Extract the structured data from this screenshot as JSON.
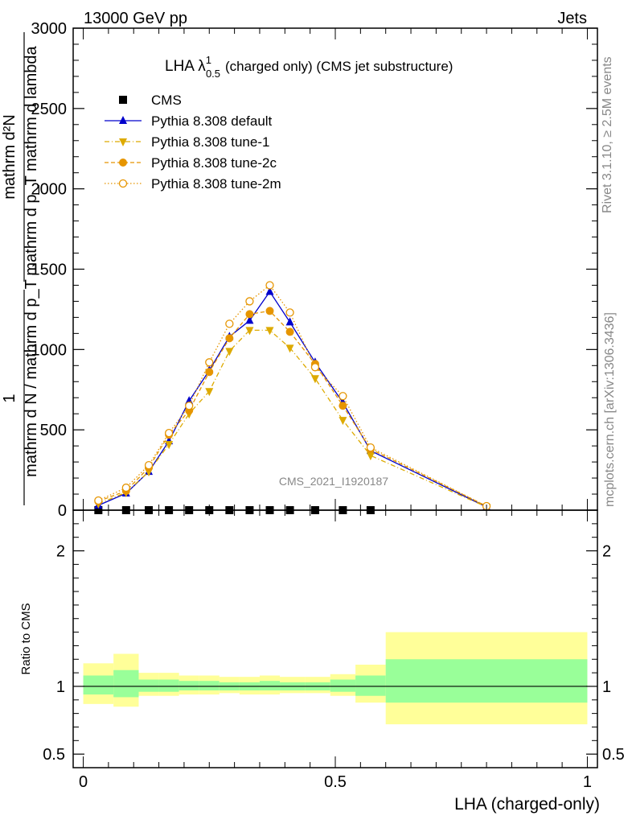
{
  "header": {
    "left": "13000 GeV pp",
    "right": "Jets"
  },
  "side": {
    "rivet": "Rivet 3.1.10, ≥ 2.5M events",
    "mcplots": "mcplots.cern.ch [arXiv:1306.3436]"
  },
  "watermark": "CMS_2021_I1920187",
  "chart_data": [
    {
      "type": "line",
      "title": "LHA λ",
      "title_sup": "1",
      "title_sub": "0.5",
      "title_rest": "(charged only) (CMS jet substructure)",
      "xlabel": "LHA (charged-only)",
      "ylabel_parts": [
        "1",
        "mathrm d N / mathrm d p",
        "mathrm d p_T mathrm d lambda",
        "mathrm d^2N",
        "mathrm d p_T mathrm d lambda"
      ],
      "ylabel_num": "mathrm d²N",
      "ylabel_den": "mathrm d p_T mathrm d lambda",
      "ylabel_pre_num": "1",
      "ylabel_pre_den": "mathrm d N / mathrm d p_T",
      "xlim": [
        -0.02,
        1.02
      ],
      "ylim": [
        0,
        3000
      ],
      "yticks": [
        0,
        500,
        1000,
        1500,
        2000,
        2500,
        3000
      ],
      "ytick_labels": [
        "0",
        "500",
        "1000",
        "1500",
        "2000",
        "2500",
        "3000"
      ],
      "legend_position": "top-left",
      "x": [
        0.03,
        0.085,
        0.13,
        0.17,
        0.21,
        0.25,
        0.29,
        0.33,
        0.37,
        0.41,
        0.46,
        0.515,
        0.57,
        0.8
      ],
      "series": [
        {
          "name": "CMS",
          "color": "#000000",
          "marker": "square",
          "values": [
            0,
            0,
            0,
            0,
            0,
            0,
            0,
            0,
            0,
            0,
            0,
            0,
            0,
            null
          ]
        },
        {
          "name": "Pythia 8.308 default",
          "color": "#0000cc",
          "marker": "triangle-up",
          "line": "solid",
          "values": [
            30,
            105,
            240,
            430,
            680,
            870,
            1080,
            1180,
            1360,
            1170,
            920,
            670,
            370,
            20
          ]
        },
        {
          "name": "Pythia 8.308 tune-1",
          "color": "#ddaa00",
          "marker": "triangle-down",
          "line": "dashdot",
          "values": [
            40,
            110,
            240,
            410,
            600,
            740,
            990,
            1120,
            1120,
            1010,
            820,
            560,
            340,
            20
          ]
        },
        {
          "name": "Pythia 8.308 tune-2c",
          "color": "#e69500",
          "marker": "circle",
          "line": "dashed",
          "values": [
            55,
            120,
            265,
            470,
            620,
            860,
            1070,
            1220,
            1240,
            1110,
            910,
            650,
            380,
            25
          ]
        },
        {
          "name": "Pythia 8.308 tune-2m",
          "color": "#e69500",
          "marker": "circle-open",
          "line": "dotted",
          "values": [
            60,
            140,
            280,
            480,
            650,
            920,
            1160,
            1300,
            1400,
            1230,
            890,
            710,
            390,
            25
          ]
        }
      ]
    },
    {
      "type": "area",
      "ylabel": "Ratio to CMS",
      "ylim": [
        0.4,
        2.3
      ],
      "yticks": [
        0.5,
        1,
        2
      ],
      "ytick_labels": [
        "0.5",
        "1",
        "2"
      ],
      "xticks": [
        0,
        0.5,
        1
      ],
      "xtick_labels": [
        "0",
        "0.5",
        "1"
      ],
      "bands": [
        {
          "x0": 0.0,
          "x1": 0.06,
          "yellow": [
            0.87,
            1.17
          ],
          "green": [
            0.94,
            1.08
          ]
        },
        {
          "x0": 0.06,
          "x1": 0.11,
          "yellow": [
            0.85,
            1.24
          ],
          "green": [
            0.92,
            1.12
          ]
        },
        {
          "x0": 0.11,
          "x1": 0.15,
          "yellow": [
            0.93,
            1.1
          ],
          "green": [
            0.96,
            1.05
          ]
        },
        {
          "x0": 0.15,
          "x1": 0.19,
          "yellow": [
            0.93,
            1.1
          ],
          "green": [
            0.96,
            1.05
          ]
        },
        {
          "x0": 0.19,
          "x1": 0.23,
          "yellow": [
            0.94,
            1.08
          ],
          "green": [
            0.97,
            1.04
          ]
        },
        {
          "x0": 0.23,
          "x1": 0.27,
          "yellow": [
            0.94,
            1.08
          ],
          "green": [
            0.97,
            1.04
          ]
        },
        {
          "x0": 0.27,
          "x1": 0.31,
          "yellow": [
            0.95,
            1.07
          ],
          "green": [
            0.97,
            1.03
          ]
        },
        {
          "x0": 0.31,
          "x1": 0.35,
          "yellow": [
            0.94,
            1.07
          ],
          "green": [
            0.97,
            1.03
          ]
        },
        {
          "x0": 0.35,
          "x1": 0.39,
          "yellow": [
            0.94,
            1.08
          ],
          "green": [
            0.97,
            1.04
          ]
        },
        {
          "x0": 0.39,
          "x1": 0.44,
          "yellow": [
            0.95,
            1.07
          ],
          "green": [
            0.97,
            1.03
          ]
        },
        {
          "x0": 0.44,
          "x1": 0.49,
          "yellow": [
            0.95,
            1.07
          ],
          "green": [
            0.97,
            1.03
          ]
        },
        {
          "x0": 0.49,
          "x1": 0.54,
          "yellow": [
            0.93,
            1.09
          ],
          "green": [
            0.96,
            1.05
          ]
        },
        {
          "x0": 0.54,
          "x1": 0.6,
          "yellow": [
            0.88,
            1.16
          ],
          "green": [
            0.93,
            1.08
          ]
        },
        {
          "x0": 0.6,
          "x1": 1.0,
          "yellow": [
            0.72,
            1.4
          ],
          "green": [
            0.88,
            1.2
          ]
        }
      ]
    }
  ]
}
